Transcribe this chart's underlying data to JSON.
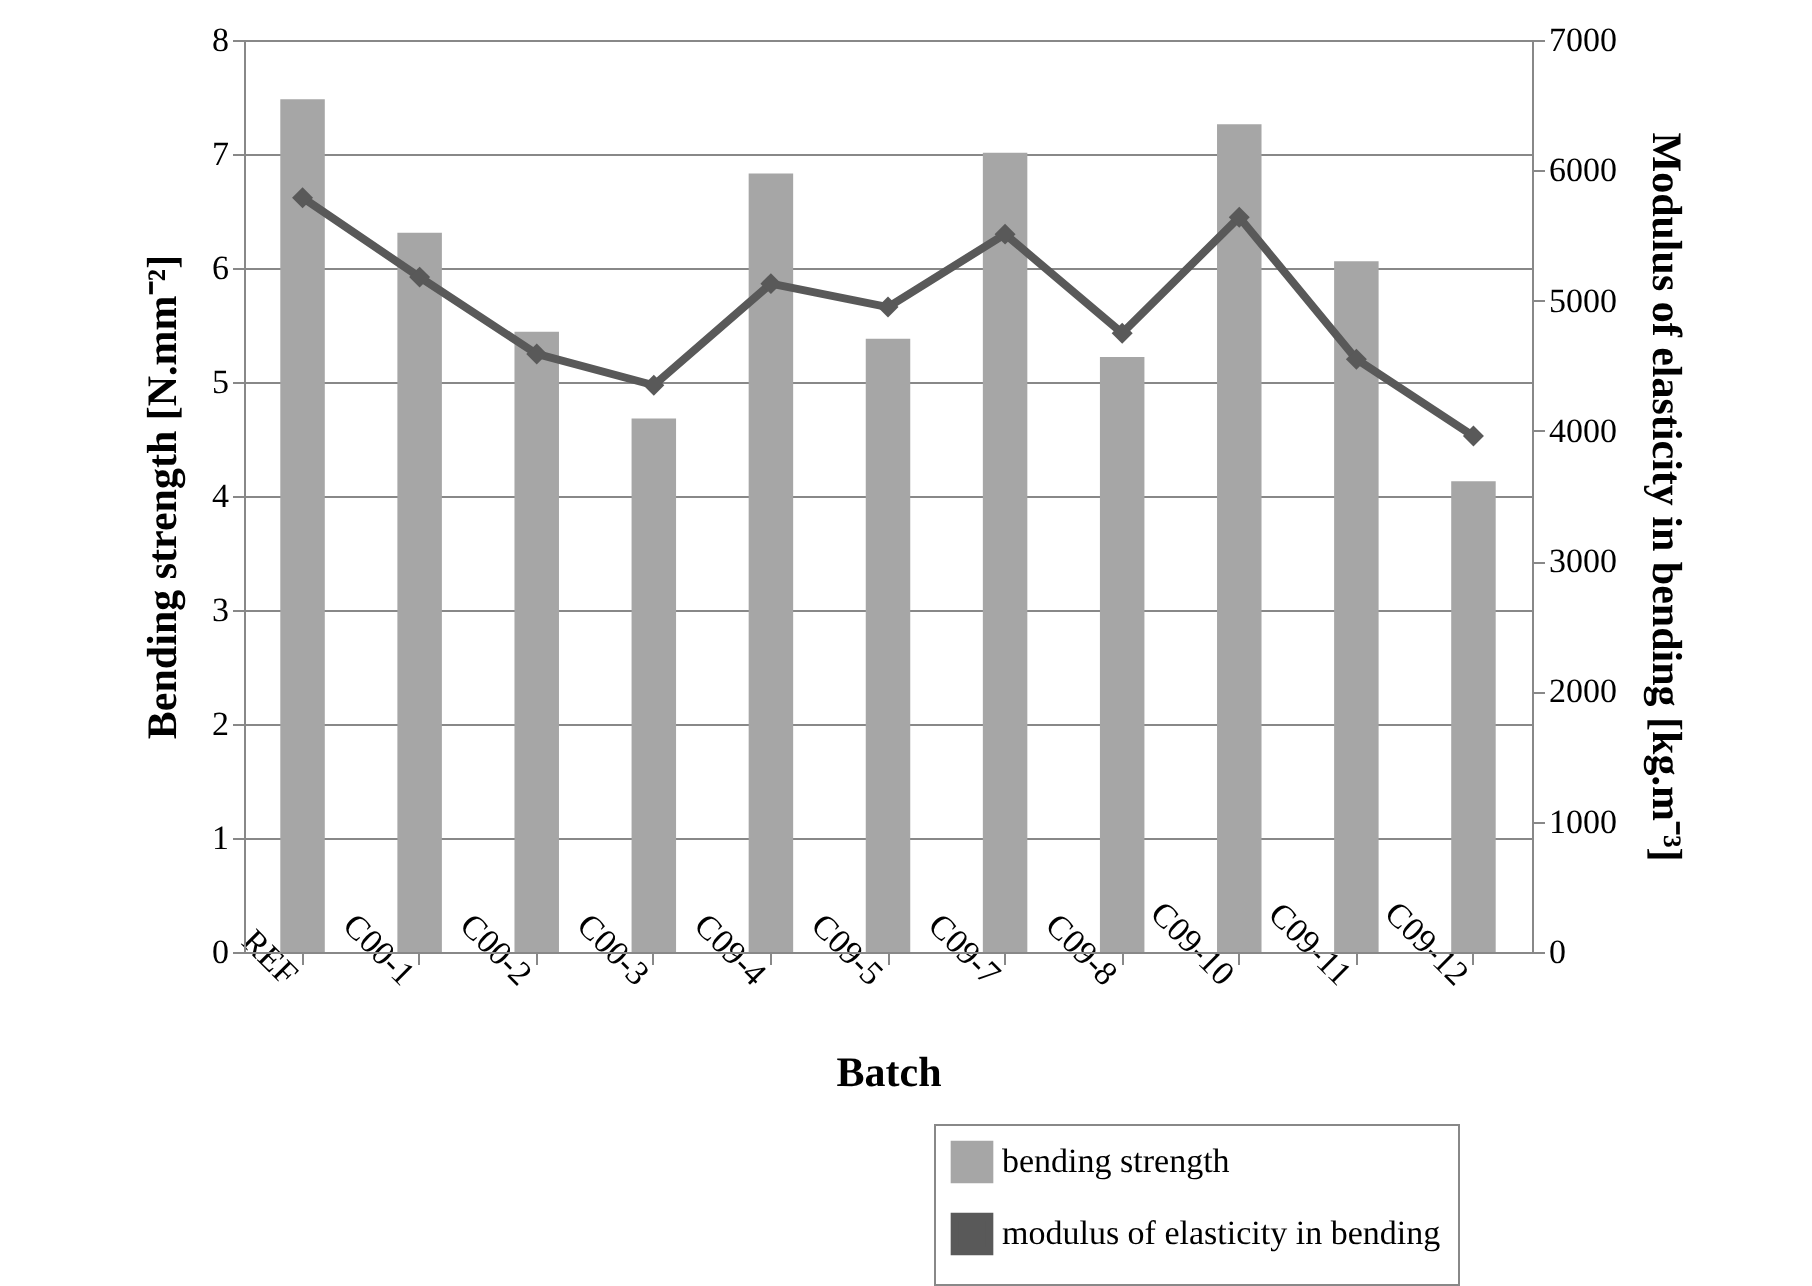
{
  "chart_data": {
    "type": "bar",
    "xlabel": "Batch",
    "ylabel": "Bending strength [N.mm⁻²]",
    "y2label": "Modulus of elasticity in bending [kg.m⁻³]",
    "categories": [
      "REF",
      "C00-1",
      "C00-2",
      "C00-3",
      "C09-4",
      "C09-5",
      "C09-7",
      "C09-8",
      "C09-10",
      "C09-11",
      "C09-12"
    ],
    "series": [
      {
        "name": "bending strength",
        "color": "#a6a6a6",
        "values": [
          7.48,
          6.31,
          5.44,
          4.68,
          6.83,
          5.38,
          7.01,
          5.22,
          7.26,
          6.06,
          4.13
        ]
      },
      {
        "name": "modulus of elasticity in bending",
        "type": "line",
        "axis": "y2",
        "color": "#595959",
        "values": [
          5790,
          5180,
          4590,
          4350,
          5130,
          4950,
          5510,
          4750,
          5640,
          4550,
          3960
        ]
      }
    ],
    "ylim": [
      0,
      8
    ],
    "yticks": [
      0,
      1,
      2,
      3,
      4,
      5,
      6,
      7,
      8
    ],
    "y2lim": [
      0,
      7000
    ],
    "y2ticks": [
      0,
      1000,
      2000,
      3000,
      4000,
      5000,
      6000,
      7000
    ],
    "grid": "y",
    "legend": "bottom right",
    "marker": "diamond",
    "line_style": "solid"
  }
}
